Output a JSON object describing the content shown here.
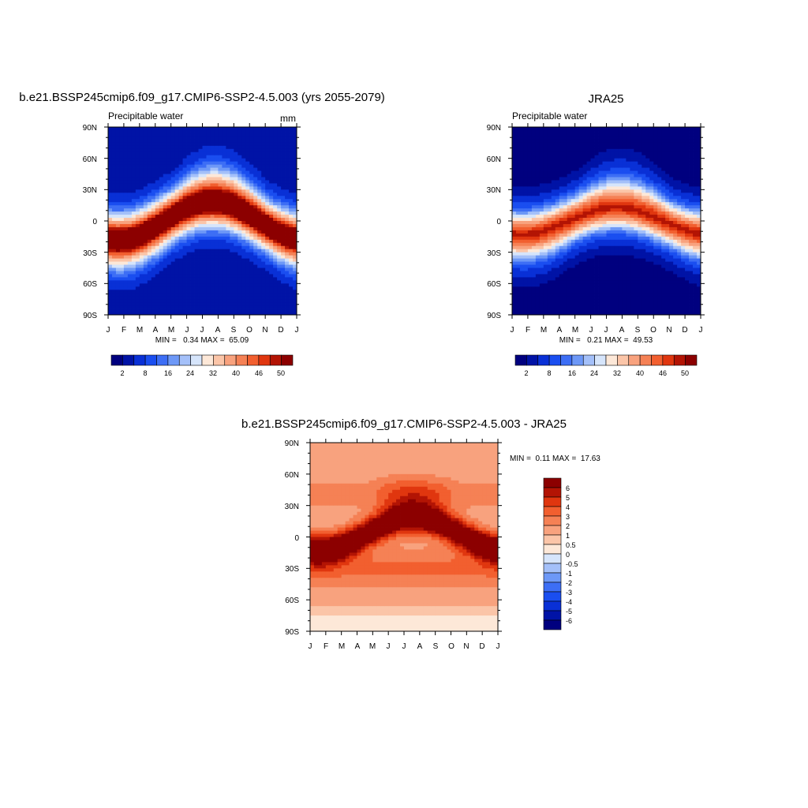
{
  "chart_data": [
    {
      "type": "heatmap",
      "title": "b.e21.BSSP245cmip6.f09_g17.CMIP6-SSP2-4.5.003 (yrs 2055-2079)",
      "left_string": "Precipitable water",
      "right_string": "mm",
      "x_ticks": [
        "J",
        "F",
        "M",
        "A",
        "M",
        "J",
        "J",
        "A",
        "S",
        "O",
        "N",
        "D",
        "J"
      ],
      "y_ticks": [
        "90N",
        "60N",
        "30N",
        "0",
        "30S",
        "60S",
        "90S"
      ],
      "ylim": [
        -90,
        90
      ],
      "min_max_text": "MIN =   0.34 MAX =  65.09",
      "colorbar_labels": [
        "2",
        "8",
        "16",
        "24",
        "32",
        "40",
        "46",
        "50"
      ],
      "colorbar_orientation": "horizontal"
    },
    {
      "type": "heatmap",
      "title": "JRA25",
      "left_string": "Precipitable water",
      "x_ticks": [
        "J",
        "F",
        "M",
        "A",
        "M",
        "J",
        "J",
        "A",
        "S",
        "O",
        "N",
        "D",
        "J"
      ],
      "y_ticks": [
        "90N",
        "60N",
        "30N",
        "0",
        "30S",
        "60S",
        "90S"
      ],
      "ylim": [
        -90,
        90
      ],
      "min_max_text": "MIN =   0.21 MAX =  49.53",
      "colorbar_labels": [
        "2",
        "8",
        "16",
        "24",
        "32",
        "40",
        "46",
        "50"
      ],
      "colorbar_orientation": "horizontal"
    },
    {
      "type": "heatmap",
      "title": "b.e21.BSSP245cmip6.f09_g17.CMIP6-SSP2-4.5.003 - JRA25",
      "x_ticks": [
        "J",
        "F",
        "M",
        "A",
        "M",
        "J",
        "J",
        "A",
        "S",
        "O",
        "N",
        "D",
        "J"
      ],
      "y_ticks": [
        "90N",
        "60N",
        "30N",
        "0",
        "30S",
        "60S",
        "90S"
      ],
      "ylim": [
        -90,
        90
      ],
      "min_max_text": "MIN =  0.11 MAX =  17.63",
      "colorbar_labels": [
        "6",
        "5",
        "4",
        "3",
        "2",
        "1",
        "0.5",
        "0",
        "-0.5",
        "-1",
        "-2",
        "-3",
        "-4",
        "-5",
        "-6"
      ],
      "colorbar_orientation": "vertical"
    }
  ],
  "colors": {
    "abs_palette": [
      "#00007f",
      "#0013a6",
      "#0930d6",
      "#1a4ef0",
      "#3d6ef5",
      "#6d98f7",
      "#a4c0f9",
      "#d6e5fb",
      "#fde8d8",
      "#fbc5a8",
      "#f8a27e",
      "#f58155",
      "#f25f2f",
      "#e0360f",
      "#b31404",
      "#8c0000"
    ],
    "diff_palette": [
      "#00007f",
      "#0013a6",
      "#0930d6",
      "#1a4ef0",
      "#3d6ef5",
      "#6d98f7",
      "#a4c0f9",
      "#d6e5fb",
      "#fde8d8",
      "#fbc5a8",
      "#f8a27e",
      "#f58155",
      "#f25f2f",
      "#e0360f",
      "#b31404",
      "#8c0000"
    ]
  }
}
